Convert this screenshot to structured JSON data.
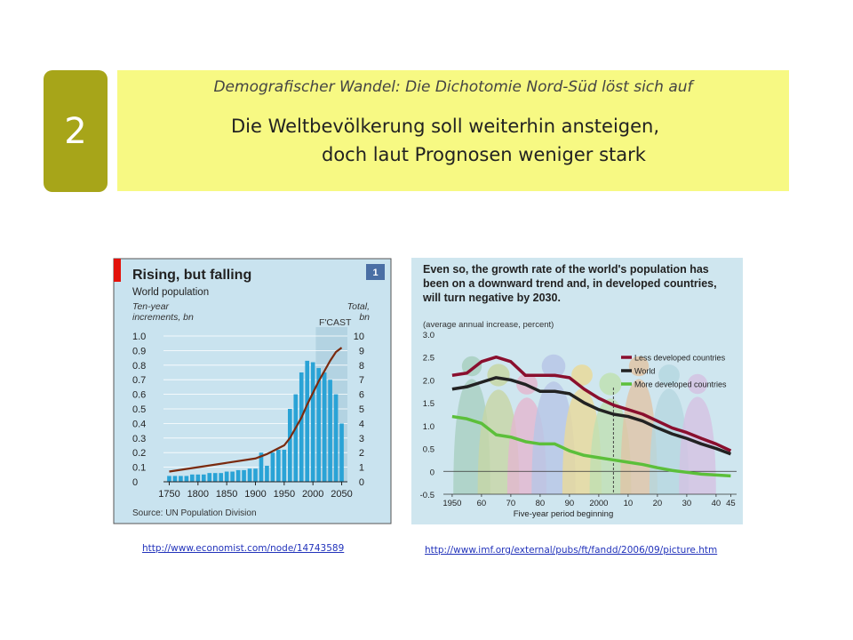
{
  "slide": {
    "number": "2",
    "subtitle": "Demografischer Wandel:  Die Dichotomie Nord-Süd löst sich auf",
    "title_line1": "Die Weltbevölkerung soll weiterhin ansteigen,",
    "title_line2": "doch laut Prognosen weniger stark"
  },
  "links": {
    "economist": "http://www.economist.com/node/14743589",
    "imf": "http://www.imf.org/external/pubs/ft/fandd/2006/09/picture.htm"
  },
  "colors": {
    "slide_number_bg": "#a7a519",
    "header_bg": "#f7f983",
    "chart1_bg": "#c9e3ef",
    "chart1_bars": "#2aa3d6",
    "chart1_line": "#7a2a0e",
    "economist_red": "#e3120b",
    "chart2_bg": "#cfe6ef",
    "less_developed": "#8a0f2e",
    "world": "#222222",
    "more_developed": "#5cbf3a"
  },
  "chart_data": [
    {
      "type": "bar",
      "title": "Rising, but falling",
      "subtitle": "World population",
      "left_axis_label": [
        "Ten-year",
        "increments, bn"
      ],
      "right_axis_label": [
        "Total,",
        "bn"
      ],
      "forecast_label": "F'CAST",
      "badge": "1",
      "source": "Source: UN Population Division",
      "x_ticks": [
        "1750",
        "1800",
        "1850",
        "1900",
        "1950",
        "2000",
        "2050"
      ],
      "y_left_ticks": [
        "0",
        "0.1",
        "0.2",
        "0.3",
        "0.4",
        "0.5",
        "0.6",
        "0.7",
        "0.8",
        "0.9",
        "1.0"
      ],
      "y_right_ticks": [
        "0",
        "1",
        "2",
        "3",
        "4",
        "5",
        "6",
        "7",
        "8",
        "9",
        "10"
      ],
      "ylim_left": [
        0,
        1.0
      ],
      "ylim_right": [
        0,
        10
      ],
      "xlim": [
        1740,
        2060
      ],
      "forecast_start": 2010,
      "series": [
        {
          "name": "Ten-year increments, bn",
          "type": "bar",
          "x": [
            1750,
            1760,
            1770,
            1780,
            1790,
            1800,
            1810,
            1820,
            1830,
            1840,
            1850,
            1860,
            1870,
            1880,
            1890,
            1900,
            1910,
            1920,
            1930,
            1940,
            1950,
            1960,
            1970,
            1980,
            1990,
            2000,
            2010,
            2020,
            2030,
            2040,
            2050
          ],
          "values": [
            0.04,
            0.04,
            0.04,
            0.04,
            0.05,
            0.05,
            0.05,
            0.06,
            0.06,
            0.06,
            0.07,
            0.07,
            0.08,
            0.08,
            0.09,
            0.09,
            0.2,
            0.11,
            0.2,
            0.22,
            0.22,
            0.5,
            0.6,
            0.75,
            0.83,
            0.82,
            0.78,
            0.75,
            0.7,
            0.6,
            0.4
          ]
        },
        {
          "name": "Total, bn",
          "type": "line",
          "x": [
            1750,
            1800,
            1850,
            1900,
            1920,
            1940,
            1950,
            1960,
            1970,
            1980,
            1990,
            2000,
            2010,
            2020,
            2030,
            2040,
            2050
          ],
          "values": [
            0.7,
            1.0,
            1.3,
            1.6,
            1.9,
            2.3,
            2.5,
            3.0,
            3.7,
            4.4,
            5.3,
            6.1,
            6.9,
            7.6,
            8.3,
            8.9,
            9.2
          ]
        }
      ]
    },
    {
      "type": "line",
      "title": "Even so, the growth rate of the world's population has been on a downward trend and, in developed countries, will turn negative by 2030.",
      "title_lines": [
        "Even so, the growth rate of the world's population has",
        "been on a downward trend and, in developed countries,",
        "will turn negative by 2030."
      ],
      "unit_label": "(average annual increase, percent)",
      "xlabel": "Five-year period beginning",
      "x_ticks": [
        "1950",
        "60",
        "70",
        "80",
        "90",
        "2000",
        "10",
        "20",
        "30",
        "40",
        "45"
      ],
      "x_tick_values": [
        1950,
        1960,
        1970,
        1980,
        1990,
        2000,
        2010,
        2020,
        2030,
        2040,
        2045
      ],
      "y_ticks": [
        "3.0",
        "2.5",
        "2.0",
        "1.5",
        "1.0",
        "0.5",
        "0",
        "-0.5"
      ],
      "y_tick_values": [
        3.0,
        2.5,
        2.0,
        1.5,
        1.0,
        0.5,
        0,
        -0.5
      ],
      "xlim": [
        1947,
        2047
      ],
      "ylim": [
        -0.5,
        3.0
      ],
      "projection_start": 2005,
      "legend_position": "top-right",
      "series": [
        {
          "name": "Less developed countries",
          "x": [
            1950,
            1955,
            1960,
            1965,
            1970,
            1975,
            1980,
            1985,
            1990,
            1995,
            2000,
            2005,
            2010,
            2015,
            2020,
            2025,
            2030,
            2035,
            2040,
            2045
          ],
          "values": [
            2.1,
            2.15,
            2.4,
            2.5,
            2.4,
            2.1,
            2.1,
            2.1,
            2.05,
            1.8,
            1.6,
            1.45,
            1.35,
            1.25,
            1.1,
            0.95,
            0.85,
            0.72,
            0.6,
            0.45
          ]
        },
        {
          "name": "World",
          "x": [
            1950,
            1955,
            1960,
            1965,
            1970,
            1975,
            1980,
            1985,
            1990,
            1995,
            2000,
            2005,
            2010,
            2015,
            2020,
            2025,
            2030,
            2035,
            2040,
            2045
          ],
          "values": [
            1.8,
            1.85,
            1.95,
            2.05,
            2.0,
            1.9,
            1.75,
            1.75,
            1.7,
            1.5,
            1.35,
            1.25,
            1.2,
            1.1,
            0.95,
            0.82,
            0.72,
            0.6,
            0.5,
            0.38
          ]
        },
        {
          "name": "More developed countries",
          "x": [
            1950,
            1955,
            1960,
            1965,
            1970,
            1975,
            1980,
            1985,
            1990,
            1995,
            2000,
            2005,
            2010,
            2015,
            2020,
            2025,
            2030,
            2035,
            2040,
            2045
          ],
          "values": [
            1.2,
            1.15,
            1.05,
            0.8,
            0.75,
            0.65,
            0.6,
            0.6,
            0.45,
            0.35,
            0.3,
            0.25,
            0.2,
            0.15,
            0.08,
            0.02,
            -0.02,
            -0.06,
            -0.08,
            -0.1
          ]
        }
      ]
    }
  ]
}
